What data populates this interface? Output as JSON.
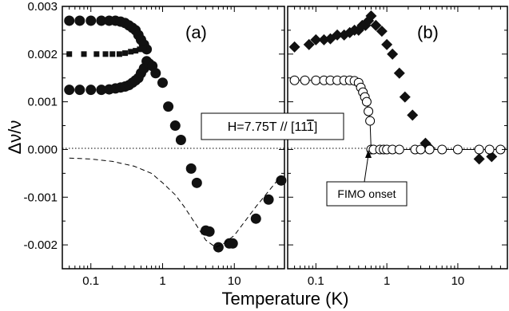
{
  "chart_data": {
    "type": "scatter",
    "xlabel": "Temperature (K)",
    "ylabel": "Δν/ν",
    "xscale": "log",
    "grid": false,
    "yticks": [
      "0.003",
      "0.002",
      "0.001",
      "0.000",
      "-0.001",
      "-0.002"
    ],
    "panels": [
      {
        "label": "(a)",
        "xlim": [
          0.04,
          50
        ],
        "ylim": [
          -0.0025,
          0.003
        ],
        "xticks": [
          "0.1",
          "1",
          "10"
        ],
        "series": [
          {
            "marker": "filled-circle",
            "points": [
              [
                0.05,
                0.0027
              ],
              [
                0.07,
                0.0027
              ],
              [
                0.1,
                0.0027
              ],
              [
                0.14,
                0.0027
              ],
              [
                0.18,
                0.0027
              ],
              [
                0.22,
                0.0027
              ],
              [
                0.26,
                0.00268
              ],
              [
                0.3,
                0.00265
              ],
              [
                0.34,
                0.0026
              ],
              [
                0.38,
                0.00255
              ],
              [
                0.42,
                0.0025
              ],
              [
                0.46,
                0.0024
              ],
              [
                0.5,
                0.0023
              ],
              [
                0.55,
                0.0022
              ],
              [
                0.6,
                0.0021
              ],
              [
                0.05,
                0.00125
              ],
              [
                0.07,
                0.00125
              ],
              [
                0.1,
                0.00125
              ],
              [
                0.14,
                0.00125
              ],
              [
                0.18,
                0.00126
              ],
              [
                0.22,
                0.00128
              ],
              [
                0.26,
                0.0013
              ],
              [
                0.3,
                0.00132
              ],
              [
                0.34,
                0.00135
              ],
              [
                0.38,
                0.0014
              ],
              [
                0.42,
                0.00145
              ],
              [
                0.46,
                0.0015
              ],
              [
                0.5,
                0.0016
              ],
              [
                0.55,
                0.0017
              ],
              [
                0.6,
                0.00185
              ],
              [
                0.65,
                0.0018
              ],
              [
                0.72,
                0.00175
              ],
              [
                0.8,
                0.0016
              ],
              [
                1.0,
                0.0014
              ],
              [
                1.2,
                0.0009
              ],
              [
                1.5,
                0.0005
              ],
              [
                1.8,
                0.0002
              ],
              [
                2.5,
                -0.0004
              ],
              [
                3.0,
                -0.0007
              ],
              [
                4.0,
                -0.0017
              ],
              [
                4.5,
                -0.00172
              ],
              [
                6.0,
                -0.00205
              ],
              [
                8.5,
                -0.00197
              ],
              [
                9.5,
                -0.00197
              ],
              [
                20.0,
                -0.00145
              ],
              [
                30.0,
                -0.00105
              ],
              [
                45.0,
                -0.00065
              ]
            ]
          },
          {
            "marker": "filled-square-small",
            "points": [
              [
                0.05,
                0.002
              ],
              [
                0.08,
                0.002
              ],
              [
                0.12,
                0.002
              ],
              [
                0.16,
                0.002
              ],
              [
                0.2,
                0.002
              ],
              [
                0.25,
                0.002
              ],
              [
                0.3,
                0.00202
              ],
              [
                0.36,
                0.00205
              ],
              [
                0.42,
                0.00207
              ],
              [
                0.48,
                0.0021
              ],
              [
                0.55,
                0.00213
              ]
            ]
          },
          {
            "marker": "none",
            "line": "dashed",
            "points": [
              [
                0.05,
                -0.00018
              ],
              [
                0.1,
                -0.0002
              ],
              [
                0.2,
                -0.00025
              ],
              [
                0.4,
                -0.00035
              ],
              [
                0.7,
                -0.0005
              ],
              [
                1.0,
                -0.0007
              ],
              [
                1.5,
                -0.00095
              ],
              [
                2.0,
                -0.0012
              ],
              [
                3.0,
                -0.0016
              ],
              [
                4.0,
                -0.0019
              ],
              [
                5.5,
                -0.00205
              ],
              [
                7.0,
                -0.00198
              ],
              [
                10.0,
                -0.0018
              ],
              [
                20.0,
                -0.0012
              ],
              [
                45.0,
                -0.00055
              ]
            ]
          }
        ]
      },
      {
        "label": "(b)",
        "xlim": [
          0.04,
          50
        ],
        "ylim": [
          -0.0025,
          0.003
        ],
        "xticks": [
          "0.1",
          "1",
          "10"
        ],
        "series": [
          {
            "marker": "filled-diamond",
            "points": [
              [
                0.05,
                0.00215
              ],
              [
                0.08,
                0.0022
              ],
              [
                0.1,
                0.0023
              ],
              [
                0.13,
                0.0023
              ],
              [
                0.16,
                0.00232
              ],
              [
                0.2,
                0.0024
              ],
              [
                0.25,
                0.0024
              ],
              [
                0.3,
                0.00245
              ],
              [
                0.35,
                0.0025
              ],
              [
                0.4,
                0.0025
              ],
              [
                0.45,
                0.0026
              ],
              [
                0.5,
                0.0026
              ],
              [
                0.55,
                0.0027
              ],
              [
                0.6,
                0.0028
              ],
              [
                0.7,
                0.0026
              ],
              [
                0.85,
                0.00248
              ],
              [
                1.0,
                0.0022
              ],
              [
                1.2,
                0.002
              ],
              [
                1.5,
                0.0016
              ],
              [
                1.8,
                0.0011
              ],
              [
                2.3,
                0.00072
              ],
              [
                3.5,
                0.00013
              ],
              [
                4.0,
                3e-05
              ],
              [
                20.0,
                -0.0002
              ],
              [
                30.0,
                -0.00015
              ]
            ]
          },
          {
            "marker": "open-circle",
            "line": "solid",
            "points": [
              [
                0.05,
                0.00145
              ],
              [
                0.07,
                0.00145
              ],
              [
                0.1,
                0.00145
              ],
              [
                0.13,
                0.00145
              ],
              [
                0.16,
                0.00145
              ],
              [
                0.2,
                0.00145
              ],
              [
                0.25,
                0.00145
              ],
              [
                0.3,
                0.00145
              ],
              [
                0.35,
                0.00144
              ],
              [
                0.4,
                0.0014
              ],
              [
                0.43,
                0.0013
              ],
              [
                0.46,
                0.0012
              ],
              [
                0.49,
                0.0011
              ],
              [
                0.52,
                0.001
              ],
              [
                0.55,
                0.0008
              ],
              [
                0.58,
                0.0006
              ],
              [
                0.6,
                0.0
              ],
              [
                0.65,
                0.0
              ],
              [
                0.8,
                0.0
              ],
              [
                0.9,
                0.0
              ],
              [
                1.0,
                0.0
              ],
              [
                1.2,
                0.0
              ],
              [
                1.5,
                0.0
              ],
              [
                2.5,
                0.0
              ],
              [
                3.0,
                0.0
              ],
              [
                4.0,
                0.0
              ],
              [
                6.0,
                0.0
              ],
              [
                10.0,
                0.0
              ],
              [
                20.0,
                0.0
              ],
              [
                28.0,
                0.0
              ],
              [
                40.0,
                0.0
              ]
            ]
          }
        ]
      }
    ],
    "annotations": [
      {
        "text": "H=7.75T // [111]",
        "overline_last_char": true
      },
      {
        "text": "FIMO onset",
        "arrow_to": [
          0.62,
          0.0
        ]
      }
    ]
  }
}
